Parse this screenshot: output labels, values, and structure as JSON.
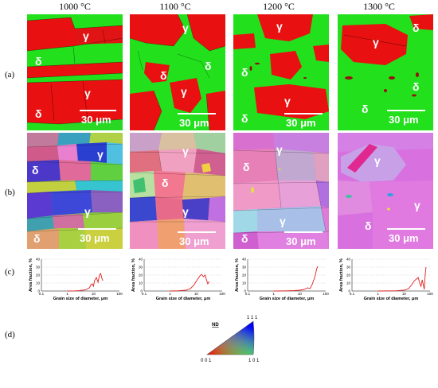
{
  "columns": [
    "1000 °C",
    "1100 °C",
    "1200 °C",
    "1300 °C"
  ],
  "row_labels": [
    "(a)",
    "(b)",
    "(c)",
    "(d)"
  ],
  "phases": {
    "gamma": "γ",
    "delta": "δ"
  },
  "scale_bar": "30 μm",
  "colors": {
    "delta_phase": "#22e01c",
    "gamma_phase": "#e81010",
    "curve": "#e02020"
  },
  "chart_data": [
    {
      "type": "line",
      "panel": "1000 °C",
      "xlabel": "Grain size of diameter, μm",
      "ylabel": "Area fraction, %",
      "xscale": "log",
      "xlim": [
        0.1,
        100
      ],
      "ylim": [
        0,
        40
      ],
      "yticks": [
        0,
        10,
        20,
        30,
        40
      ],
      "xticks": [
        "0.1",
        "1",
        "10",
        "100"
      ],
      "x": [
        1,
        2,
        3,
        5,
        7,
        8,
        9,
        10,
        11,
        13,
        15,
        17,
        19,
        21,
        23
      ],
      "values": [
        0,
        0.2,
        0.5,
        1.5,
        4,
        8,
        9,
        6,
        13,
        17,
        11,
        20,
        22,
        16,
        13
      ]
    },
    {
      "type": "line",
      "panel": "1100 °C",
      "xlabel": "Grain size of diameter, μm",
      "ylabel": "Area fraction, %",
      "xscale": "log",
      "xlim": [
        0.1,
        100
      ],
      "ylim": [
        0,
        40
      ],
      "yticks": [
        0,
        10,
        20,
        30,
        40
      ],
      "xticks": [
        "0.1",
        "1",
        "10",
        "100"
      ],
      "x": [
        1,
        2,
        4,
        6,
        8,
        10,
        12,
        14,
        16,
        19,
        22,
        25,
        28,
        32
      ],
      "values": [
        0,
        0.3,
        1,
        3,
        7,
        12,
        16,
        19,
        21,
        18,
        20,
        14,
        9,
        12
      ]
    },
    {
      "type": "line",
      "panel": "1200 °C",
      "xlabel": "Grain size of diameter, μm",
      "ylabel": "Area fraction, %",
      "xscale": "log",
      "xlim": [
        0.1,
        100
      ],
      "ylim": [
        0,
        40
      ],
      "yticks": [
        0,
        10,
        20,
        30,
        40
      ],
      "xticks": [
        "0.1",
        "1",
        "10",
        "100"
      ],
      "x": [
        1,
        3,
        6,
        10,
        15,
        20,
        25,
        30,
        35,
        40,
        45,
        50
      ],
      "values": [
        0,
        0.2,
        0.5,
        1,
        2,
        4,
        3,
        8,
        14,
        20,
        28,
        31
      ]
    },
    {
      "type": "line",
      "panel": "1300 °C",
      "xlabel": "Grain size of diameter, μm",
      "ylabel": "Area fraction, %",
      "xscale": "log",
      "xlim": [
        0.1,
        100
      ],
      "ylim": [
        0,
        40
      ],
      "yticks": [
        0,
        10,
        20,
        30,
        40
      ],
      "xticks": [
        "0.1",
        "1",
        "10",
        "100"
      ],
      "x": [
        1,
        5,
        10,
        15,
        20,
        25,
        30,
        35,
        40,
        45,
        50,
        55,
        60,
        65,
        70
      ],
      "values": [
        0,
        0.3,
        1,
        3,
        8,
        13,
        15,
        17,
        10,
        6,
        14,
        8,
        2,
        20,
        30
      ]
    }
  ],
  "ipf_legend": {
    "label": "ND",
    "vertices": [
      "0 0 1",
      "1 0 1",
      "1 1 1"
    ]
  }
}
